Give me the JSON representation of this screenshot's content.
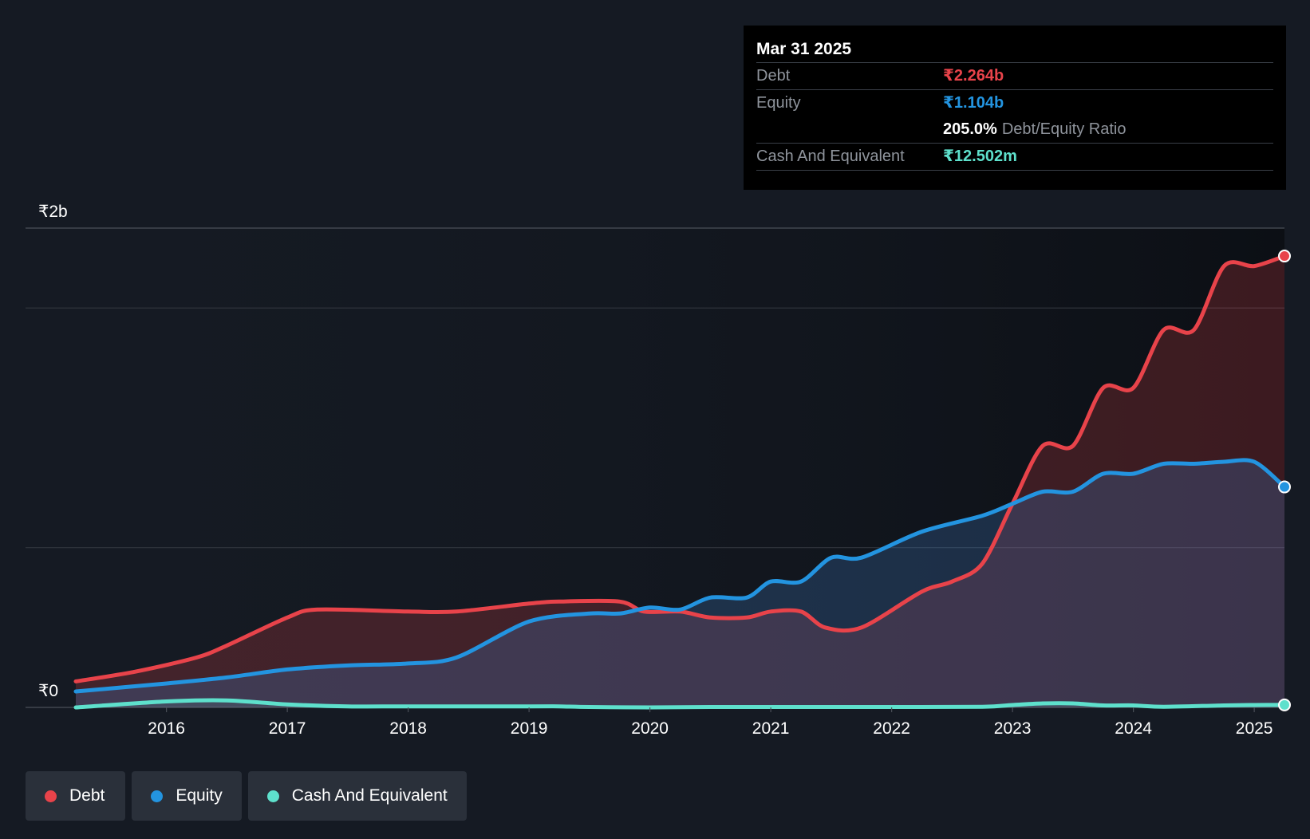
{
  "colors": {
    "background": "#151a23",
    "debt": "#e8434a",
    "equity": "#2394e0",
    "cash": "#5ee0cc"
  },
  "chart_data": {
    "type": "area",
    "ylim": [
      0,
      2.4
    ],
    "xlim": [
      2015.25,
      2025.25
    ],
    "y_tick_labels": [
      {
        "value": 0,
        "label": "₹0"
      },
      {
        "value": 2.4,
        "label": "₹2b"
      }
    ],
    "y_gridlines": [
      0.8,
      2.0
    ],
    "x_ticks": [
      2016,
      2017,
      2018,
      2019,
      2020,
      2021,
      2022,
      2023,
      2024,
      2025
    ],
    "series": [
      {
        "name": "Debt",
        "color": "#e8434a",
        "points": [
          [
            2015.25,
            0.13
          ],
          [
            2015.75,
            0.18
          ],
          [
            2016.25,
            0.25
          ],
          [
            2016.5,
            0.31
          ],
          [
            2017.0,
            0.45
          ],
          [
            2017.25,
            0.49
          ],
          [
            2018.0,
            0.48
          ],
          [
            2018.4,
            0.48
          ],
          [
            2019.0,
            0.52
          ],
          [
            2019.25,
            0.53
          ],
          [
            2019.75,
            0.53
          ],
          [
            2019.95,
            0.48
          ],
          [
            2020.25,
            0.48
          ],
          [
            2020.5,
            0.45
          ],
          [
            2020.8,
            0.45
          ],
          [
            2021.0,
            0.48
          ],
          [
            2021.25,
            0.48
          ],
          [
            2021.45,
            0.4
          ],
          [
            2021.75,
            0.4
          ],
          [
            2022.25,
            0.58
          ],
          [
            2022.5,
            0.63
          ],
          [
            2022.75,
            0.72
          ],
          [
            2023.0,
            1.02
          ],
          [
            2023.25,
            1.31
          ],
          [
            2023.5,
            1.31
          ],
          [
            2023.75,
            1.6
          ],
          [
            2024.0,
            1.6
          ],
          [
            2024.25,
            1.89
          ],
          [
            2024.5,
            1.89
          ],
          [
            2024.75,
            2.21
          ],
          [
            2025.0,
            2.21
          ],
          [
            2025.25,
            2.26
          ]
        ]
      },
      {
        "name": "Equity",
        "color": "#2394e0",
        "points": [
          [
            2015.25,
            0.08
          ],
          [
            2016.0,
            0.12
          ],
          [
            2016.5,
            0.15
          ],
          [
            2017.0,
            0.19
          ],
          [
            2017.5,
            0.21
          ],
          [
            2018.0,
            0.22
          ],
          [
            2018.4,
            0.25
          ],
          [
            2019.0,
            0.43
          ],
          [
            2019.5,
            0.47
          ],
          [
            2019.75,
            0.47
          ],
          [
            2020.0,
            0.5
          ],
          [
            2020.25,
            0.49
          ],
          [
            2020.5,
            0.55
          ],
          [
            2020.8,
            0.55
          ],
          [
            2021.0,
            0.63
          ],
          [
            2021.25,
            0.63
          ],
          [
            2021.5,
            0.75
          ],
          [
            2021.75,
            0.75
          ],
          [
            2022.25,
            0.88
          ],
          [
            2022.75,
            0.96
          ],
          [
            2023.0,
            1.02
          ],
          [
            2023.25,
            1.08
          ],
          [
            2023.5,
            1.08
          ],
          [
            2023.75,
            1.17
          ],
          [
            2024.0,
            1.17
          ],
          [
            2024.25,
            1.22
          ],
          [
            2024.5,
            1.22
          ],
          [
            2024.75,
            1.23
          ],
          [
            2025.0,
            1.23
          ],
          [
            2025.25,
            1.104
          ]
        ]
      },
      {
        "name": "Cash And Equivalent",
        "color": "#5ee0cc",
        "points": [
          [
            2015.25,
            0.0
          ],
          [
            2016.0,
            0.03
          ],
          [
            2016.5,
            0.035
          ],
          [
            2017.0,
            0.015
          ],
          [
            2017.5,
            0.005
          ],
          [
            2018.0,
            0.005
          ],
          [
            2019.0,
            0.005
          ],
          [
            2019.25,
            0.005
          ],
          [
            2019.5,
            0.002
          ],
          [
            2020.0,
            0.0
          ],
          [
            2020.5,
            0.002
          ],
          [
            2021.0,
            0.002
          ],
          [
            2022.0,
            0.002
          ],
          [
            2022.75,
            0.003
          ],
          [
            2023.0,
            0.012
          ],
          [
            2023.25,
            0.02
          ],
          [
            2023.5,
            0.02
          ],
          [
            2023.75,
            0.01
          ],
          [
            2024.0,
            0.01
          ],
          [
            2024.25,
            0.003
          ],
          [
            2024.75,
            0.01
          ],
          [
            2025.0,
            0.012
          ],
          [
            2025.25,
            0.0125
          ]
        ]
      }
    ],
    "legend": {
      "position": "bottom-left",
      "items": [
        "Debt",
        "Equity",
        "Cash And Equivalent"
      ]
    }
  },
  "tooltip": {
    "date": "Mar 31 2025",
    "debt_label": "Debt",
    "debt_value": "₹2.264b",
    "equity_label": "Equity",
    "equity_value": "₹1.104b",
    "ratio_value": "205.0%",
    "ratio_label": "Debt/Equity Ratio",
    "cash_label": "Cash And Equivalent",
    "cash_value": "₹12.502m"
  },
  "legend": {
    "debt": "Debt",
    "equity": "Equity",
    "cash": "Cash And Equivalent"
  }
}
